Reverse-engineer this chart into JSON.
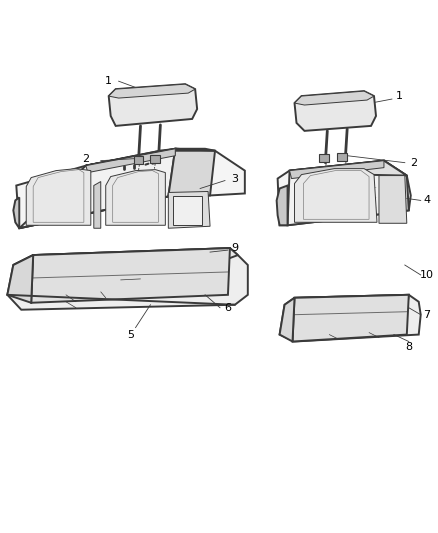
{
  "background_color": "#ffffff",
  "line_color": "#3a3a3a",
  "label_color": "#000000",
  "fig_width": 4.38,
  "fig_height": 5.33,
  "dpi": 100,
  "lw_outer": 1.4,
  "lw_inner": 0.7,
  "lw_detail": 0.5,
  "seat_fill": "#f5f5f5",
  "cushion_fill": "#eeeeee",
  "headrest_fill": "#e8e8e8",
  "shadow_fill": "#d8d8d8"
}
